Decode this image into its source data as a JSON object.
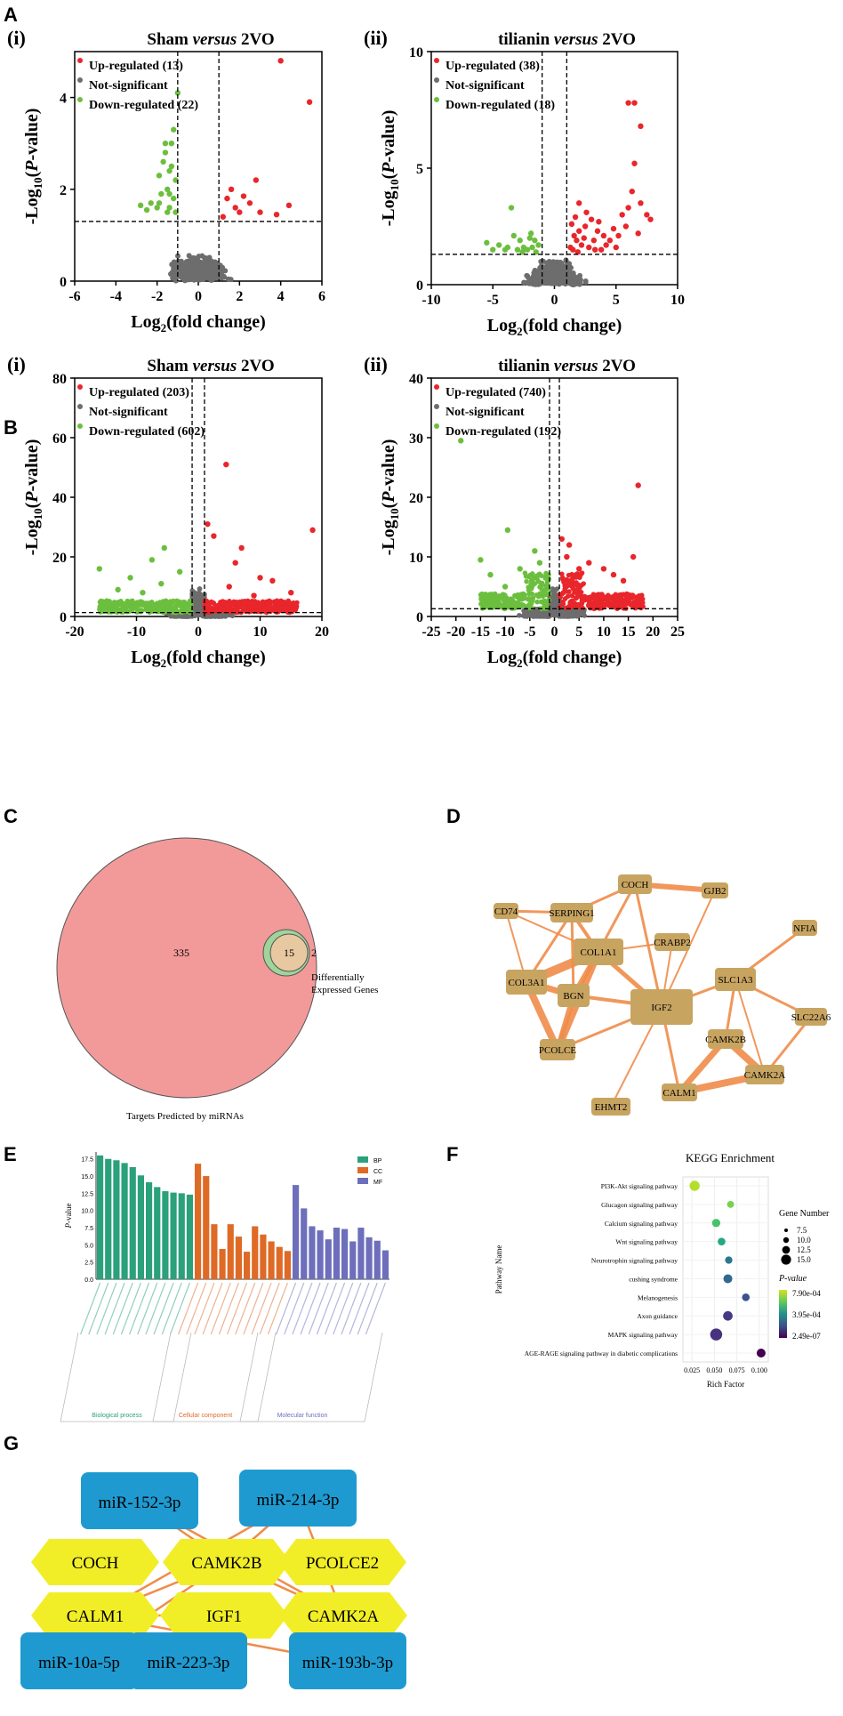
{
  "panels": {
    "A": "A",
    "B": "B",
    "C": "C",
    "D": "D",
    "E": "E",
    "F": "F",
    "G": "G"
  },
  "colors": {
    "up": "#e8262b",
    "ns": "#6d6d6d",
    "down": "#6cbf3e",
    "node": "#c8a461",
    "edge": "#f08c4a",
    "mirna": "#1f9ad0",
    "gene": "#f1ee27",
    "venn_big": "#f29a9a",
    "venn_small": "#e8c8a0",
    "venn_green": "#9fd49b"
  },
  "chart_data": [
    {
      "id": "A-i",
      "type": "scatter",
      "sub": "(i)",
      "title_parts": [
        "Sham ",
        "versus",
        " 2VO"
      ],
      "xlabel": "Log2(fold change)",
      "ylabel": "-Log10(P-value)",
      "xlim": [
        -6,
        6
      ],
      "ylim": [
        0,
        5
      ],
      "xticks": [
        -6,
        -4,
        -2,
        0,
        2,
        4,
        6
      ],
      "yticks": [
        0,
        2,
        4
      ],
      "vlines": [
        -1,
        1
      ],
      "hline": 1.3,
      "legend": [
        "Up-regulated (13)",
        "Not-significant",
        "Down-regulated (22)"
      ],
      "up": [
        [
          1.2,
          1.4
        ],
        [
          1.4,
          1.8
        ],
        [
          1.6,
          2.0
        ],
        [
          2.0,
          1.5
        ],
        [
          2.5,
          1.7
        ],
        [
          2.8,
          2.2
        ],
        [
          3.0,
          1.5
        ],
        [
          3.8,
          1.45
        ],
        [
          4.0,
          4.8
        ],
        [
          4.4,
          1.65
        ],
        [
          5.4,
          3.9
        ],
        [
          1.8,
          1.6
        ],
        [
          2.2,
          1.85
        ]
      ],
      "down": [
        [
          -1.4,
          2.4
        ],
        [
          -1.2,
          3.3
        ],
        [
          -1.6,
          2.8
        ],
        [
          -1.0,
          4.1
        ],
        [
          -1.5,
          2.0
        ],
        [
          -2.0,
          1.6
        ],
        [
          -2.5,
          1.55
        ],
        [
          -1.3,
          2.5
        ],
        [
          -1.6,
          3.0
        ],
        [
          -1.9,
          1.7
        ],
        [
          -2.3,
          1.7
        ],
        [
          -1.4,
          1.6
        ],
        [
          -1.1,
          2.2
        ],
        [
          -1.8,
          1.9
        ],
        [
          -1.2,
          1.8
        ],
        [
          -1.5,
          1.5
        ],
        [
          -1.7,
          2.6
        ],
        [
          -2.8,
          1.65
        ],
        [
          -1.3,
          3.0
        ],
        [
          -1.1,
          1.5
        ],
        [
          -1.9,
          2.3
        ],
        [
          -1.4,
          1.9
        ]
      ]
    },
    {
      "id": "A-ii",
      "type": "scatter",
      "sub": "(ii)",
      "title_parts": [
        "tilianin ",
        "versus",
        " 2VO"
      ],
      "xlabel": "Log2(fold change)",
      "ylabel": "-Log10(P-value)",
      "xlim": [
        -10,
        10
      ],
      "ylim": [
        0,
        10
      ],
      "xticks": [
        -10,
        -5,
        0,
        5,
        10
      ],
      "yticks": [
        0,
        5,
        10
      ],
      "vlines": [
        -1,
        1
      ],
      "hline": 1.3,
      "legend": [
        "Up-regulated (38)",
        "Not-significant",
        "Down-regulated (18)"
      ],
      "up": [
        [
          6.0,
          7.8
        ],
        [
          6.5,
          7.8
        ],
        [
          7.0,
          6.8
        ],
        [
          6.5,
          5.2
        ],
        [
          6.3,
          4.0
        ],
        [
          7.0,
          3.5
        ],
        [
          6.0,
          3.3
        ],
        [
          7.5,
          3.0
        ],
        [
          5.5,
          3.0
        ],
        [
          5.8,
          2.5
        ],
        [
          6.8,
          2.2
        ],
        [
          7.8,
          2.8
        ],
        [
          2.0,
          2.3
        ],
        [
          2.5,
          2.5
        ],
        [
          3.0,
          2.8
        ],
        [
          3.5,
          2.3
        ],
        [
          4.0,
          2.1
        ],
        [
          4.5,
          1.9
        ],
        [
          5.0,
          1.6
        ],
        [
          1.5,
          1.5
        ],
        [
          1.8,
          1.9
        ],
        [
          2.2,
          1.7
        ],
        [
          2.8,
          1.6
        ],
        [
          3.2,
          1.9
        ],
        [
          3.8,
          1.5
        ],
        [
          1.3,
          1.6
        ],
        [
          1.6,
          2.1
        ],
        [
          2.4,
          2.0
        ],
        [
          3.3,
          1.5
        ],
        [
          4.2,
          1.7
        ],
        [
          5.2,
          2.1
        ],
        [
          2.0,
          3.5
        ],
        [
          1.7,
          2.9
        ],
        [
          1.4,
          2.6
        ],
        [
          3.6,
          2.7
        ],
        [
          4.8,
          2.4
        ],
        [
          2.6,
          3.1
        ],
        [
          1.9,
          1.4
        ]
      ],
      "down": [
        [
          -3.5,
          3.3
        ],
        [
          -3.3,
          2.1
        ],
        [
          -5.5,
          1.8
        ],
        [
          -4.0,
          1.5
        ],
        [
          -2.5,
          1.6
        ],
        [
          -2.0,
          2.0
        ],
        [
          -1.5,
          1.4
        ],
        [
          -1.8,
          1.6
        ],
        [
          -3.0,
          1.5
        ],
        [
          -4.5,
          1.7
        ],
        [
          -2.8,
          1.9
        ],
        [
          -1.3,
          1.7
        ],
        [
          -2.2,
          1.5
        ],
        [
          -3.8,
          1.6
        ],
        [
          -1.6,
          1.9
        ],
        [
          -2.6,
          1.4
        ],
        [
          -5.0,
          1.5
        ],
        [
          -1.9,
          2.2
        ]
      ]
    },
    {
      "id": "B-i",
      "type": "scatter",
      "sub": "(i)",
      "title_parts": [
        "Sham ",
        "versus",
        " 2VO"
      ],
      "xlabel": "Log2(fold change)",
      "ylabel": "-Log10(P-value)",
      "xlim": [
        -20,
        20
      ],
      "ylim": [
        0,
        80
      ],
      "xticks": [
        -20,
        -10,
        0,
        10,
        20
      ],
      "yticks": [
        0,
        20,
        40,
        60,
        80
      ],
      "vlines": [
        -1,
        1
      ],
      "hline": 1.3,
      "legend": [
        "Up-regulated (203)",
        "Not-significant",
        "Down-regulated (602)"
      ],
      "up": [
        [
          4.5,
          51
        ],
        [
          1.5,
          31
        ],
        [
          2.5,
          27
        ],
        [
          7,
          23
        ],
        [
          6,
          18
        ],
        [
          10,
          13
        ],
        [
          12,
          12
        ],
        [
          15,
          8
        ],
        [
          18.5,
          29
        ],
        [
          14,
          3
        ],
        [
          9,
          7
        ],
        [
          5,
          10
        ]
      ],
      "down": [
        [
          -7.5,
          19
        ],
        [
          -5.5,
          23
        ],
        [
          -16,
          16
        ],
        [
          -11,
          13
        ],
        [
          -13,
          9
        ],
        [
          -3,
          15
        ],
        [
          -9,
          8
        ],
        [
          -6,
          11
        ]
      ]
    },
    {
      "id": "B-ii",
      "type": "scatter",
      "sub": "(ii)",
      "title_parts": [
        "tilianin ",
        "versus",
        " 2VO"
      ],
      "xlabel": "Log2(fold change)",
      "ylabel": "-Log10(P-value)",
      "xlim": [
        -25,
        25
      ],
      "ylim": [
        0,
        40
      ],
      "xticks": [
        -25,
        -20,
        -15,
        -10,
        -5,
        0,
        5,
        10,
        15,
        20,
        25
      ],
      "yticks": [
        0,
        10,
        20,
        30,
        40
      ],
      "vlines": [
        -1,
        1
      ],
      "hline": 1.3,
      "legend": [
        "Up-regulated (740)",
        "Not-significant",
        "Down-regulated (192)"
      ],
      "up": [
        [
          17,
          22
        ],
        [
          1.5,
          13
        ],
        [
          3,
          12
        ],
        [
          16,
          10
        ],
        [
          7,
          9
        ],
        [
          10,
          8
        ],
        [
          12,
          7
        ],
        [
          14,
          6
        ],
        [
          5,
          8
        ],
        [
          2.5,
          10
        ]
      ],
      "down": [
        [
          -19,
          29.5
        ],
        [
          -9.5,
          14.5
        ],
        [
          -15,
          9.5
        ],
        [
          -13,
          7
        ],
        [
          -4,
          11
        ],
        [
          -3,
          9
        ],
        [
          -7,
          8
        ],
        [
          -10,
          5
        ]
      ]
    }
  ],
  "venn": {
    "big_label": "Targets Predicted by miRNAs",
    "small_label": "Differentially\nExpressed Genes",
    "left": "335",
    "overlap": "15",
    "right": "2"
  },
  "network": {
    "nodes": [
      "COCH",
      "GJB2",
      "CD74",
      "SERPING1",
      "COL1A1",
      "CRABP2",
      "NFIA",
      "COL3A1",
      "BGN",
      "IGF2",
      "SLC1A3",
      "SLC22A6",
      "PCOLCE",
      "CAMK2B",
      "CAMK2A",
      "CALM1",
      "EHMT2"
    ]
  },
  "go": {
    "ylabel": "P-value",
    "legend": [
      "BP",
      "CC",
      "MF"
    ],
    "ticks": [
      "0.0",
      "2.5",
      "5.0",
      "7.5",
      "10.0",
      "12.5",
      "15.0",
      "17.5"
    ],
    "bp": [
      18.0,
      17.5,
      17.3,
      16.9,
      16.3,
      15.1,
      14.1,
      13.4,
      12.8,
      12.6,
      12.5,
      12.3
    ],
    "cc": [
      16.8,
      15.0,
      8.0,
      4.4,
      8.0,
      6.2,
      4.0,
      7.7,
      6.5,
      5.5,
      4.7,
      4.1
    ],
    "mf": [
      13.7,
      10.3,
      7.7,
      7.1,
      5.8,
      7.5,
      7.3,
      5.5,
      7.5,
      6.1,
      5.6,
      4.2
    ],
    "groups": [
      "Biological process",
      "Cellular component",
      "Molecular function"
    ]
  },
  "kegg": {
    "title": "KEGG Enrichment",
    "ylabel": "Pathway Name",
    "xlabel": "Rich Factor",
    "pathways": [
      "PI3K-Akt signaling pathway",
      "Glucagon signaling pathway",
      "Calcium signaling pathway",
      "Wnt signaling pathway",
      "Neurotrophin signaling pathway",
      "cushing syndrome",
      "Melanogenesis",
      "Axon guidance",
      "MAPK signaling pathway",
      "AGE-RAGE signaling pathway in diabetic complications"
    ],
    "rich": [
      0.028,
      0.068,
      0.052,
      0.058,
      0.066,
      0.065,
      0.085,
      0.065,
      0.052,
      0.102
    ],
    "count": [
      12,
      7,
      9,
      8,
      7.5,
      10,
      8,
      11,
      15,
      10
    ],
    "xticks": [
      "0.025",
      "0.050",
      "0.075",
      "0.100"
    ],
    "size_title": "Gene Number",
    "size_labels": [
      "7.5",
      "10.0",
      "12.5",
      "15.0"
    ],
    "color_title": "P-value",
    "color_labels": [
      "7.90e-04",
      "3.95e-04",
      "2.49e-07"
    ]
  },
  "mirnet": {
    "mirna": [
      "miR-152-3p",
      "miR-214-3p",
      "miR-10a-5p",
      "miR-223-3p",
      "miR-193b-3p"
    ],
    "genes": [
      "COCH",
      "CAMK2B",
      "PCOLCE2",
      "CALM1",
      "IGF1",
      "CAMK2A"
    ]
  }
}
